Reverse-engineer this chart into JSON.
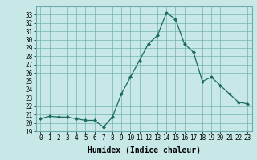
{
  "xlabel": "Humidex (Indice chaleur)",
  "x": [
    0,
    1,
    2,
    3,
    4,
    5,
    6,
    7,
    8,
    9,
    10,
    11,
    12,
    13,
    14,
    15,
    16,
    17,
    18,
    19,
    20,
    21,
    22,
    23
  ],
  "y": [
    20.5,
    20.8,
    20.7,
    20.7,
    20.5,
    20.3,
    20.3,
    19.5,
    20.7,
    23.5,
    25.5,
    27.5,
    29.5,
    30.5,
    33.2,
    32.5,
    29.5,
    28.5,
    25.0,
    25.5,
    24.5,
    23.5,
    22.5,
    22.3
  ],
  "line_color": "#1a6b5a",
  "marker": "D",
  "marker_size": 2,
  "ylim": [
    19,
    34
  ],
  "xlim": [
    -0.5,
    23.5
  ],
  "yticks": [
    19,
    20,
    21,
    22,
    23,
    24,
    25,
    26,
    27,
    28,
    29,
    30,
    31,
    32,
    33
  ],
  "xtick_labels": [
    "0",
    "1",
    "2",
    "3",
    "4",
    "5",
    "6",
    "7",
    "8",
    "9",
    "10",
    "11",
    "12",
    "13",
    "14",
    "15",
    "16",
    "17",
    "18",
    "19",
    "20",
    "21",
    "22",
    "23"
  ],
  "bg_color": "#c8e8e8",
  "grid_color": "#6aadad",
  "axes_color": "#6aadad",
  "tick_fontsize": 5.5,
  "xlabel_fontsize": 7
}
